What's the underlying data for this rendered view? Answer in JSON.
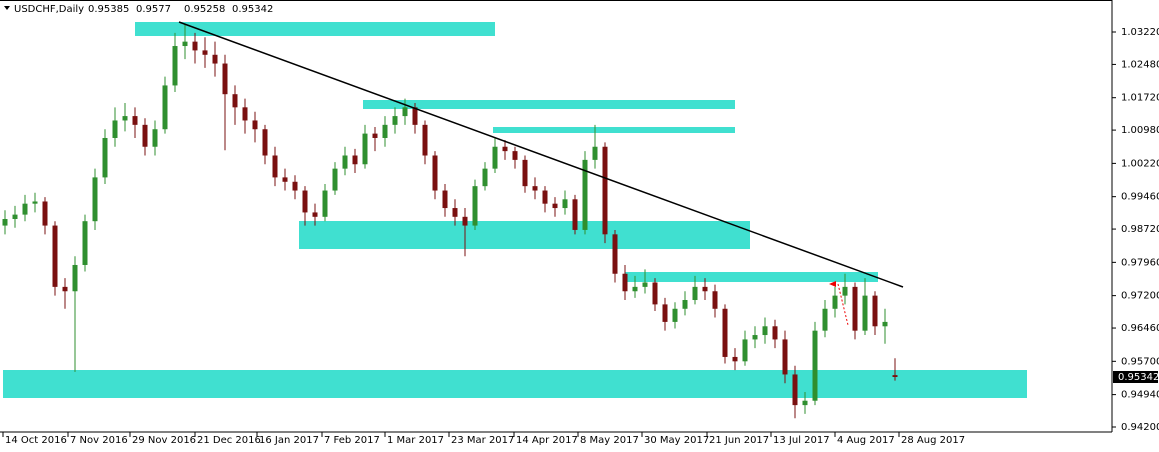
{
  "chart_data": {
    "type": "candlestick",
    "title": "USDCHF,Daily",
    "ylim": [
      0.94086,
      1.03951
    ],
    "yticks": [
      {
        "value": 1.0322,
        "label": "1.03220"
      },
      {
        "value": 1.0248,
        "label": "1.02480"
      },
      {
        "value": 1.0172,
        "label": "1.01720"
      },
      {
        "value": 1.0098,
        "label": "1.00980"
      },
      {
        "value": 1.0022,
        "label": "1.00220"
      },
      {
        "value": 0.9946,
        "label": "0.99460"
      },
      {
        "value": 0.9872,
        "label": "0.98720"
      },
      {
        "value": 0.9796,
        "label": "0.97960"
      },
      {
        "value": 0.972,
        "label": "0.97200"
      },
      {
        "value": 0.9646,
        "label": "0.96460"
      },
      {
        "value": 0.957,
        "label": "0.95700"
      },
      {
        "value": 0.9494,
        "label": "0.94940"
      },
      {
        "value": 0.942,
        "label": "0.94200"
      }
    ],
    "xlim": [
      0,
      111
    ],
    "xticks": [
      {
        "value": 0.3,
        "label": "14 Oct 2016"
      },
      {
        "value": 6.8,
        "label": "7 Nov 2016"
      },
      {
        "value": 13,
        "label": "29 Nov 2016"
      },
      {
        "value": 19.5,
        "label": "21 Dec 2016"
      },
      {
        "value": 25.7,
        "label": "16 Jan 2017"
      },
      {
        "value": 32.2,
        "label": "7 Feb 2017"
      },
      {
        "value": 38.5,
        "label": "1 Mar 2017"
      },
      {
        "value": 44.9,
        "label": "23 Mar 2017"
      },
      {
        "value": 51.4,
        "label": "14 Apr 2017"
      },
      {
        "value": 57.8,
        "label": "8 May 2017"
      },
      {
        "value": 64.2,
        "label": "30 May 2017"
      },
      {
        "value": 70.7,
        "label": "21 Jun 2017"
      },
      {
        "value": 77.1,
        "label": "13 Jul 2017"
      },
      {
        "value": 83.5,
        "label": "4 Aug 2017"
      },
      {
        "value": 89.9,
        "label": "28 Aug 2017"
      }
    ],
    "up_color": "#2f8f2f",
    "down_color": "#7a1010",
    "candles": [
      [
        0.988,
        0.9915,
        0.986,
        0.9895
      ],
      [
        0.9895,
        0.9925,
        0.9875,
        0.9905
      ],
      [
        0.9905,
        0.995,
        0.989,
        0.993
      ],
      [
        0.993,
        0.9955,
        0.991,
        0.9935
      ],
      [
        0.9935,
        0.9945,
        0.986,
        0.988
      ],
      [
        0.988,
        0.989,
        0.972,
        0.974
      ],
      [
        0.974,
        0.976,
        0.969,
        0.973
      ],
      [
        0.973,
        0.981,
        0.9546,
        0.979
      ],
      [
        0.979,
        0.9905,
        0.9775,
        0.989
      ],
      [
        0.989,
        1.001,
        0.987,
        0.999
      ],
      [
        0.999,
        1.01,
        0.9975,
        1.008
      ],
      [
        1.008,
        1.015,
        1.006,
        1.012
      ],
      [
        1.012,
        1.016,
        1.0095,
        1.013
      ],
      [
        1.013,
        1.015,
        1.008,
        1.011
      ],
      [
        1.011,
        1.0125,
        1.004,
        1.006
      ],
      [
        1.006,
        1.012,
        1.004,
        1.01
      ],
      [
        1.01,
        1.022,
        1.009,
        1.02
      ],
      [
        1.02,
        1.032,
        1.0185,
        1.029
      ],
      [
        1.029,
        1.034,
        1.026,
        1.03
      ],
      [
        1.03,
        1.032,
        1.025,
        1.028
      ],
      [
        1.028,
        1.031,
        1.024,
        1.027
      ],
      [
        1.027,
        1.03,
        1.022,
        1.025
      ],
      [
        1.025,
        1.027,
        1.0052,
        1.018
      ],
      [
        1.018,
        1.02,
        1.011,
        1.015
      ],
      [
        1.015,
        1.017,
        1.009,
        1.012
      ],
      [
        1.012,
        1.014,
        1.007,
        1.01
      ],
      [
        1.01,
        1.011,
        1.002,
        1.004
      ],
      [
        1.004,
        1.006,
        0.997,
        0.999
      ],
      [
        0.999,
        1.001,
        0.996,
        0.998
      ],
      [
        0.998,
        0.9995,
        0.994,
        0.996
      ],
      [
        0.996,
        0.997,
        0.988,
        0.991
      ],
      [
        0.991,
        0.993,
        0.988,
        0.99
      ],
      [
        0.99,
        0.9975,
        0.989,
        0.996
      ],
      [
        0.996,
        1.0025,
        0.995,
        1.001
      ],
      [
        1.001,
        1.006,
        0.9995,
        1.004
      ],
      [
        1.004,
        1.0055,
        1.0,
        1.002
      ],
      [
        1.002,
        1.011,
        1.001,
        1.009
      ],
      [
        1.009,
        1.0105,
        1.005,
        1.008
      ],
      [
        1.008,
        1.013,
        1.006,
        1.011
      ],
      [
        1.011,
        1.015,
        1.009,
        1.013
      ],
      [
        1.013,
        1.017,
        1.011,
        1.015
      ],
      [
        1.015,
        1.016,
        1.009,
        1.011
      ],
      [
        1.011,
        1.012,
        1.002,
        1.004
      ],
      [
        1.004,
        1.005,
        0.994,
        0.996
      ],
      [
        0.996,
        0.9975,
        0.99,
        0.992
      ],
      [
        0.992,
        0.994,
        0.988,
        0.99
      ],
      [
        0.99,
        0.992,
        0.981,
        0.988
      ],
      [
        0.988,
        0.9985,
        0.987,
        0.997
      ],
      [
        0.997,
        1.0025,
        0.996,
        1.001
      ],
      [
        1.001,
        1.008,
        1.0,
        1.006
      ],
      [
        1.006,
        1.0075,
        1.003,
        1.005
      ],
      [
        1.005,
        1.006,
        1.001,
        1.003
      ],
      [
        1.003,
        1.004,
        0.9955,
        0.997
      ],
      [
        0.997,
        0.999,
        0.994,
        0.996
      ],
      [
        0.996,
        0.997,
        0.991,
        0.993
      ],
      [
        0.993,
        0.9945,
        0.99,
        0.992
      ],
      [
        0.992,
        0.996,
        0.9905,
        0.994
      ],
      [
        0.994,
        0.995,
        0.986,
        0.987
      ],
      [
        0.987,
        1.005,
        0.986,
        1.003
      ],
      [
        1.003,
        1.011,
        1.001,
        1.006
      ],
      [
        1.006,
        1.007,
        0.984,
        0.986
      ],
      [
        0.986,
        0.987,
        0.975,
        0.977
      ],
      [
        0.977,
        0.979,
        0.971,
        0.973
      ],
      [
        0.973,
        0.9765,
        0.9715,
        0.974
      ],
      [
        0.974,
        0.978,
        0.9725,
        0.975
      ],
      [
        0.975,
        0.976,
        0.9685,
        0.97
      ],
      [
        0.97,
        0.9715,
        0.964,
        0.966
      ],
      [
        0.966,
        0.9705,
        0.9645,
        0.969
      ],
      [
        0.969,
        0.973,
        0.9675,
        0.971
      ],
      [
        0.971,
        0.9765,
        0.97,
        0.974
      ],
      [
        0.974,
        0.976,
        0.971,
        0.973
      ],
      [
        0.973,
        0.9745,
        0.967,
        0.969
      ],
      [
        0.969,
        0.97,
        0.9565,
        0.958
      ],
      [
        0.958,
        0.96,
        0.955,
        0.957
      ],
      [
        0.957,
        0.964,
        0.956,
        0.962
      ],
      [
        0.962,
        0.965,
        0.96,
        0.963
      ],
      [
        0.963,
        0.967,
        0.961,
        0.965
      ],
      [
        0.965,
        0.9665,
        0.96,
        0.962
      ],
      [
        0.962,
        0.964,
        0.952,
        0.954
      ],
      [
        0.954,
        0.956,
        0.944,
        0.947
      ],
      [
        0.947,
        0.95,
        0.945,
        0.948
      ],
      [
        0.948,
        0.966,
        0.947,
        0.964
      ],
      [
        0.964,
        0.971,
        0.9625,
        0.969
      ],
      [
        0.969,
        0.974,
        0.967,
        0.972
      ],
      [
        0.972,
        0.977,
        0.97,
        0.974
      ],
      [
        0.974,
        0.975,
        0.962,
        0.964
      ],
      [
        0.964,
        0.976,
        0.963,
        0.972
      ],
      [
        0.972,
        0.973,
        0.963,
        0.965
      ],
      [
        0.965,
        0.969,
        0.961,
        0.966
      ],
      [
        0.95385,
        0.9577,
        0.95258,
        0.95342
      ]
    ]
  }
}
